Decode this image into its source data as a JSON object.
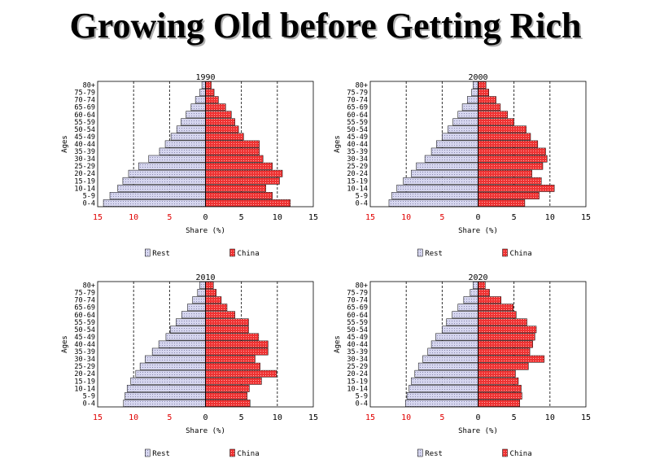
{
  "slide": {
    "title": "Growing Old before Getting Rich"
  },
  "colors": {
    "rest_fill": "#d6d6ef",
    "china_fill": "#ee3333",
    "grid": "#000000",
    "negative_tick": "#e00000"
  },
  "chart_data": [
    {
      "type": "bar",
      "orientation": "horizontal-pyramid",
      "title": "1990",
      "xlabel": "Share (%)",
      "ylabel": "Ages",
      "categories": [
        "0-4",
        "5-9",
        "10-14",
        "15-19",
        "20-24",
        "25-29",
        "30-34",
        "35-39",
        "40-44",
        "45-49",
        "50-54",
        "55-59",
        "60-64",
        "65-69",
        "70-74",
        "75-79",
        "80+"
      ],
      "xticks": [
        15,
        10,
        5,
        0,
        5,
        10,
        15
      ],
      "xlim": [
        -15,
        15
      ],
      "grid_x": [
        -10,
        -5,
        5,
        10
      ],
      "legend": "bottom",
      "series": [
        {
          "name": "Rest",
          "side": "left",
          "values": [
            14.2,
            13.3,
            12.2,
            11.5,
            10.7,
            9.3,
            7.9,
            6.4,
            5.6,
            4.8,
            4.0,
            3.4,
            2.7,
            2.0,
            1.4,
            0.8,
            0.5
          ]
        },
        {
          "name": "China",
          "side": "right",
          "values": [
            11.8,
            9.3,
            8.4,
            10.3,
            10.7,
            9.3,
            8.0,
            7.5,
            7.5,
            5.3,
            4.6,
            4.1,
            3.6,
            2.8,
            1.8,
            1.2,
            0.8
          ]
        }
      ]
    },
    {
      "type": "bar",
      "orientation": "horizontal-pyramid",
      "title": "2000",
      "xlabel": "Share (%)",
      "ylabel": "Ages",
      "categories": [
        "0-4",
        "5-9",
        "10-14",
        "15-19",
        "20-24",
        "25-29",
        "30-34",
        "35-39",
        "40-44",
        "45-49",
        "50-54",
        "55-59",
        "60-64",
        "65-69",
        "70-74",
        "75-79",
        "80+"
      ],
      "xticks": [
        15,
        10,
        5,
        0,
        5,
        10,
        15
      ],
      "xlim": [
        -15,
        15
      ],
      "grid_x": [
        -10,
        -5,
        5,
        10
      ],
      "legend": "bottom",
      "series": [
        {
          "name": "Rest",
          "side": "left",
          "values": [
            12.4,
            12.0,
            11.3,
            10.4,
            9.3,
            8.6,
            7.4,
            6.5,
            5.8,
            5.0,
            4.2,
            3.5,
            2.8,
            2.2,
            1.5,
            0.9,
            0.7
          ]
        },
        {
          "name": "China",
          "side": "right",
          "values": [
            6.5,
            8.5,
            10.6,
            8.8,
            7.5,
            9.0,
            9.6,
            9.4,
            8.3,
            7.3,
            6.7,
            5.0,
            4.1,
            3.1,
            2.5,
            1.5,
            1.1
          ]
        }
      ]
    },
    {
      "type": "bar",
      "orientation": "horizontal-pyramid",
      "title": "2010",
      "xlabel": "Share (%)",
      "ylabel": "Ages",
      "categories": [
        "0-4",
        "5-9",
        "10-14",
        "15-19",
        "20-24",
        "25-29",
        "30-34",
        "35-39",
        "40-44",
        "45-49",
        "50-54",
        "55-59",
        "60-64",
        "65-69",
        "70-74",
        "75-79",
        "80+"
      ],
      "xticks": [
        15,
        10,
        5,
        0,
        5,
        10,
        15
      ],
      "xlim": [
        -15,
        15
      ],
      "grid_x": [
        -10,
        -5,
        5,
        10
      ],
      "legend": "bottom",
      "series": [
        {
          "name": "Rest",
          "side": "left",
          "values": [
            11.4,
            11.2,
            10.9,
            10.4,
            9.7,
            9.1,
            8.4,
            7.4,
            6.5,
            5.5,
            4.9,
            4.1,
            3.3,
            2.5,
            1.8,
            1.1,
            0.8
          ]
        },
        {
          "name": "China",
          "side": "right",
          "values": [
            6.2,
            5.8,
            6.1,
            7.8,
            9.9,
            7.6,
            6.9,
            8.7,
            8.7,
            7.4,
            6.0,
            6.0,
            4.1,
            3.0,
            2.2,
            1.5,
            1.1
          ]
        }
      ]
    },
    {
      "type": "bar",
      "orientation": "horizontal-pyramid",
      "title": "2020",
      "xlabel": "Share (%)",
      "ylabel": "Ages",
      "categories": [
        "0-4",
        "5-9",
        "10-14",
        "15-19",
        "20-24",
        "25-29",
        "30-34",
        "35-39",
        "40-44",
        "45-49",
        "50-54",
        "55-59",
        "60-64",
        "65-69",
        "70-74",
        "75-79",
        "80+"
      ],
      "xticks": [
        15,
        10,
        5,
        0,
        5,
        10,
        15
      ],
      "xlim": [
        -15,
        15
      ],
      "grid_x": [
        -10,
        -5,
        5,
        10
      ],
      "legend": "bottom",
      "series": [
        {
          "name": "Rest",
          "side": "left",
          "values": [
            10.1,
            9.9,
            9.6,
            9.3,
            8.8,
            8.3,
            7.7,
            7.0,
            6.5,
            5.9,
            5.0,
            4.4,
            3.6,
            2.8,
            2.0,
            1.1,
            0.7
          ]
        },
        {
          "name": "China",
          "side": "right",
          "values": [
            5.8,
            6.1,
            6.0,
            5.6,
            5.2,
            7.0,
            9.2,
            7.2,
            7.6,
            7.9,
            8.1,
            6.8,
            5.3,
            4.9,
            3.2,
            1.6,
            1.0
          ]
        }
      ]
    }
  ]
}
